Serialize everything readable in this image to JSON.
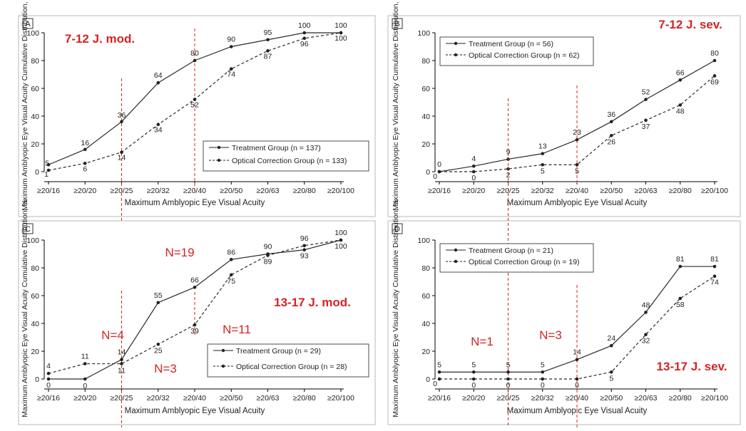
{
  "chart_data": [
    {
      "type": "line",
      "panel_label": "A",
      "categories": [
        "≥20/16",
        "≥20/20",
        "≥20/25",
        "≥20/32",
        "≥20/40",
        "≥20/50",
        "≥20/63",
        "≥20/80",
        "≥20/100"
      ],
      "xlabel": "Maximum Amblyopic Eye Visual Acuity",
      "ylabel": "Maximum Amblyopic Eye Visual Acuity Cumulative Distribution, %",
      "ylim": [
        0,
        100
      ],
      "yticks": [
        "0",
        "20",
        "40",
        "60",
        "80",
        "100"
      ],
      "series": [
        {
          "name": "Treatment Group (n = 137)",
          "values": [
            5,
            16,
            36,
            64,
            80,
            90,
            95,
            100,
            100
          ]
        },
        {
          "name": "Optical Correction Group (n = 133)",
          "values": [
            1,
            6,
            14,
            34,
            52,
            74,
            87,
            96,
            100
          ]
        }
      ],
      "legend_position": "bottom-right",
      "annotations": [
        "7-12 J. mod."
      ],
      "marker_lines_at": [
        "≥20/25",
        "≥20/40"
      ]
    },
    {
      "type": "line",
      "panel_label": "B",
      "categories": [
        "≥20/16",
        "≥20/20",
        "≥20/25",
        "≥20/32",
        "≥20/40",
        "≥20/50",
        "≥20/63",
        "≥20/80",
        "≥20/100"
      ],
      "xlabel": "Maximum Amblyopic Eye Visual Acuity",
      "ylabel": "Maximum Amblyopic Eye Visual Acuity Cumulative Distribution, %",
      "ylim": [
        0,
        100
      ],
      "yticks": [
        "0",
        "20",
        "40",
        "60",
        "80",
        "100"
      ],
      "series": [
        {
          "name": "Treatment Group (n = 56)",
          "values": [
            0,
            4,
            9,
            13,
            23,
            36,
            52,
            66,
            80
          ]
        },
        {
          "name": "Optical Correction Group (n = 62)",
          "values": [
            0,
            0,
            2,
            5,
            5,
            26,
            37,
            48,
            69
          ]
        }
      ],
      "legend_position": "top-left",
      "annotations": [
        "7-12 J. sev."
      ],
      "marker_lines_at": [
        "≥20/25",
        "≥20/40"
      ]
    },
    {
      "type": "line",
      "panel_label": "C",
      "categories": [
        "≥20/16",
        "≥20/20",
        "≥20/25",
        "≥20/32",
        "≥20/40",
        "≥20/50",
        "≥20/63",
        "≥20/80",
        "≥20/100"
      ],
      "xlabel": "Maximum Amblyopic Eye Visual Acuity",
      "ylabel": "Maximum Amblyopic Eye Visual Acuity Cumulative Distribution, %",
      "ylim": [
        0,
        100
      ],
      "yticks": [
        "0",
        "20",
        "40",
        "60",
        "80",
        "100"
      ],
      "series": [
        {
          "name": "Treatment Group (n = 29)",
          "values": [
            0,
            0,
            14,
            55,
            66,
            86,
            90,
            93,
            100
          ]
        },
        {
          "name": "Optical Correction Group (n = 28)",
          "values": [
            4,
            11,
            11,
            25,
            39,
            75,
            89,
            96,
            100
          ]
        }
      ],
      "legend_position": "bottom-right",
      "annotations": [
        "13-17 J. mod.",
        "N=19",
        "N=4",
        "N=11",
        "N=3"
      ],
      "marker_lines_at": [
        "≥20/25",
        "≥20/40"
      ]
    },
    {
      "type": "line",
      "panel_label": "D",
      "categories": [
        "≥20/16",
        "≥20/20",
        "≥20/25",
        "≥20/32",
        "≥20/40",
        "≥20/50",
        "≥20/63",
        "≥20/80",
        "≥20/100"
      ],
      "xlabel": "Maximum Amblyopic Eye Visual Acuity",
      "ylabel": "Maximum Amblyopic Eye Visual Acuity Cumulative Distribution, %",
      "ylim": [
        0,
        100
      ],
      "yticks": [
        "0",
        "20",
        "40",
        "60",
        "80",
        "100"
      ],
      "series": [
        {
          "name": "Treatment Group (n = 21)",
          "values": [
            5,
            5,
            5,
            5,
            14,
            24,
            48,
            81,
            81
          ]
        },
        {
          "name": "Optical Correction Group (n = 19)",
          "values": [
            0,
            0,
            0,
            0,
            0,
            5,
            32,
            58,
            74
          ]
        }
      ],
      "legend_position": "top-left",
      "annotations": [
        "13-17 J. sev.",
        "N=1",
        "N=3"
      ],
      "marker_lines_at": [
        "≥20/25",
        "≥20/40"
      ]
    }
  ],
  "colors": {
    "treatment": "#2a2a2a",
    "optical": "#2a2a2a",
    "annotation": "#d42424",
    "marker_line": "#d42424"
  }
}
